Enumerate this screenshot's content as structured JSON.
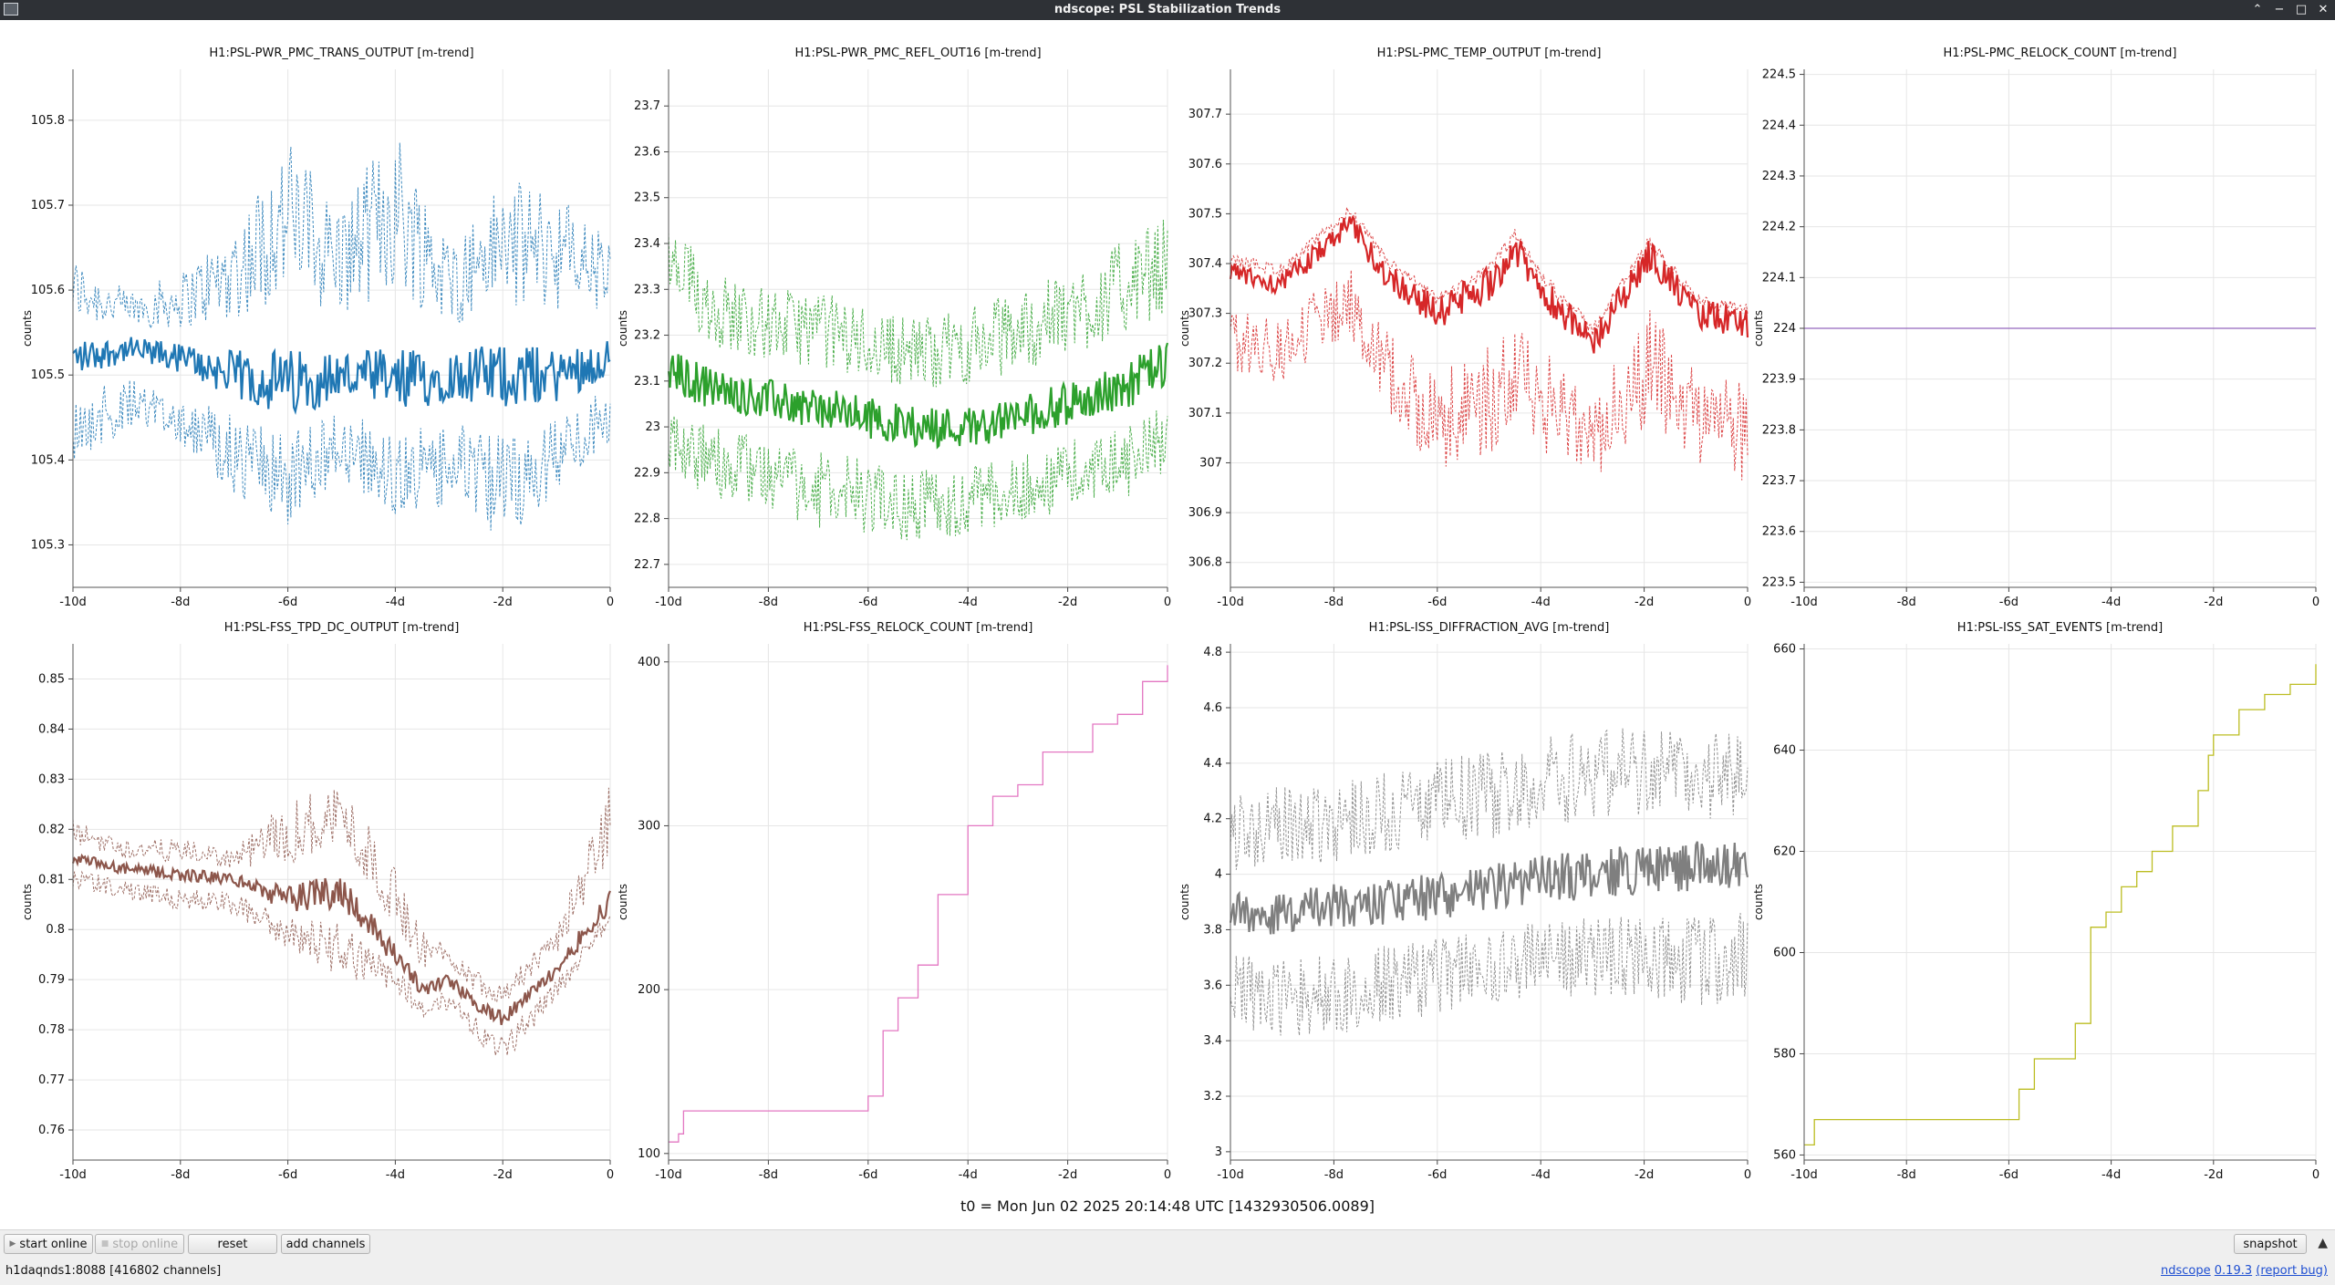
{
  "window": {
    "title": "ndscope: PSL Stabilization Trends",
    "controls": [
      "⌃",
      "−",
      "□",
      "✕"
    ]
  },
  "chart_data": [
    {
      "type": "line",
      "title": "H1:PSL-PWR_PMC_TRANS_OUTPUT [m-trend]",
      "ylabel": "counts",
      "color": "#1f77b4",
      "x_ticks": [
        "-10d",
        "-8d",
        "-6d",
        "-4d",
        "-2d",
        "0"
      ],
      "y_ticks": [
        "105.3",
        "105.4",
        "105.5",
        "105.6",
        "105.7",
        "105.8"
      ],
      "xlim": [
        -10,
        0
      ],
      "ylim": [
        105.25,
        105.86
      ],
      "grid": true,
      "series": {
        "x": [
          -10,
          -9,
          -8,
          -7,
          -6,
          -5,
          -4,
          -3,
          -2,
          -1,
          0
        ],
        "mean": [
          105.52,
          105.53,
          105.52,
          105.5,
          105.49,
          105.5,
          105.49,
          105.5,
          105.5,
          105.5,
          105.52
        ],
        "min": [
          105.4,
          105.43,
          105.42,
          105.36,
          105.32,
          105.38,
          105.33,
          105.34,
          105.3,
          105.36,
          105.42
        ],
        "max": [
          105.64,
          105.6,
          105.62,
          105.68,
          105.78,
          105.7,
          105.8,
          105.66,
          105.73,
          105.72,
          105.66
        ]
      }
    },
    {
      "type": "line",
      "title": "H1:PSL-PWR_PMC_REFL_OUT16 [m-trend]",
      "ylabel": "counts",
      "color": "#2ca02c",
      "x_ticks": [
        "-10d",
        "-8d",
        "-6d",
        "-4d",
        "-2d",
        "0"
      ],
      "y_ticks": [
        "22.7",
        "22.8",
        "22.9",
        "23",
        "23.1",
        "23.2",
        "23.3",
        "23.4",
        "23.5",
        "23.6",
        "23.7"
      ],
      "xlim": [
        -10,
        0
      ],
      "ylim": [
        22.65,
        23.78
      ],
      "grid": true,
      "series": {
        "x": [
          -10,
          -9,
          -8,
          -7,
          -6,
          -5,
          -4,
          -3,
          -2,
          -1,
          0
        ],
        "mean": [
          23.12,
          23.08,
          23.06,
          23.04,
          23.02,
          23.0,
          23.0,
          23.02,
          23.05,
          23.08,
          23.14
        ],
        "min": [
          22.88,
          22.84,
          22.82,
          22.78,
          22.76,
          22.75,
          22.76,
          22.78,
          22.82,
          22.84,
          22.88
        ],
        "max": [
          23.45,
          23.34,
          23.3,
          23.3,
          23.26,
          23.24,
          23.26,
          23.3,
          23.34,
          23.4,
          23.46
        ]
      }
    },
    {
      "type": "line",
      "title": "H1:PSL-PMC_TEMP_OUTPUT [m-trend]",
      "ylabel": "counts",
      "color": "#d62728",
      "x_ticks": [
        "-10d",
        "-8d",
        "-6d",
        "-4d",
        "-2d",
        "0"
      ],
      "y_ticks": [
        "306.8",
        "306.9",
        "307",
        "307.1",
        "307.2",
        "307.3",
        "307.4",
        "307.5",
        "307.6",
        "307.7"
      ],
      "xlim": [
        -10,
        0
      ],
      "ylim": [
        306.75,
        307.79
      ],
      "grid": true,
      "series": {
        "x": [
          -10,
          -9,
          -8,
          -7.7,
          -7,
          -6,
          -5,
          -4.5,
          -4,
          -3,
          -2,
          -1.9,
          -1,
          0
        ],
        "mean": [
          307.38,
          307.36,
          307.45,
          307.48,
          307.38,
          307.3,
          307.36,
          307.43,
          307.35,
          307.24,
          307.4,
          307.42,
          307.3,
          307.28
        ],
        "min": [
          307.18,
          307.16,
          307.24,
          307.26,
          307.1,
          306.98,
          307.0,
          307.1,
          307.02,
          306.96,
          307.06,
          307.1,
          306.98,
          306.95
        ],
        "max": [
          307.42,
          307.4,
          307.49,
          307.52,
          307.42,
          307.34,
          307.4,
          307.47,
          307.39,
          307.28,
          307.44,
          307.46,
          307.34,
          307.32
        ]
      }
    },
    {
      "type": "line",
      "title": "H1:PSL-PMC_RELOCK_COUNT [m-trend]",
      "ylabel": "counts",
      "color": "#9467bd",
      "x_ticks": [
        "-10d",
        "-8d",
        "-6d",
        "-4d",
        "-2d",
        "0"
      ],
      "y_ticks": [
        "223.5",
        "223.6",
        "223.7",
        "223.8",
        "223.9",
        "224",
        "224.1",
        "224.2",
        "224.3",
        "224.4",
        "224.5"
      ],
      "xlim": [
        -10,
        0
      ],
      "ylim": [
        223.49,
        224.51
      ],
      "grid": true,
      "series": {
        "x": [
          -10,
          0
        ],
        "mean": [
          224,
          224
        ],
        "min": [
          224,
          224
        ],
        "max": [
          224,
          224
        ]
      }
    },
    {
      "type": "line",
      "title": "H1:PSL-FSS_TPD_DC_OUTPUT [m-trend]",
      "ylabel": "counts",
      "color": "#8c564b",
      "x_ticks": [
        "-10d",
        "-8d",
        "-6d",
        "-4d",
        "-2d",
        "0"
      ],
      "y_ticks": [
        "0.76",
        "0.77",
        "0.78",
        "0.79",
        "0.8",
        "0.81",
        "0.82",
        "0.83",
        "0.84",
        "0.85"
      ],
      "xlim": [
        -10,
        0
      ],
      "ylim": [
        0.754,
        0.857
      ],
      "grid": true,
      "series": {
        "x": [
          -10,
          -9,
          -8,
          -7,
          -6,
          -5,
          -4,
          -3.5,
          -3,
          -2.5,
          -2,
          -1,
          0
        ],
        "mean": [
          0.814,
          0.812,
          0.811,
          0.81,
          0.806,
          0.808,
          0.795,
          0.788,
          0.79,
          0.785,
          0.782,
          0.792,
          0.806
        ],
        "min": [
          0.808,
          0.806,
          0.804,
          0.803,
          0.796,
          0.79,
          0.788,
          0.782,
          0.784,
          0.778,
          0.773,
          0.786,
          0.8
        ],
        "max": [
          0.822,
          0.818,
          0.818,
          0.816,
          0.826,
          0.83,
          0.812,
          0.8,
          0.797,
          0.792,
          0.79,
          0.8,
          0.83
        ]
      }
    },
    {
      "type": "line",
      "title": "H1:PSL-FSS_RELOCK_COUNT [m-trend]",
      "ylabel": "counts",
      "color": "#e377c2",
      "x_ticks": [
        "-10d",
        "-8d",
        "-6d",
        "-4d",
        "-2d",
        "0"
      ],
      "y_ticks": [
        "100",
        "200",
        "300",
        "400"
      ],
      "xlim": [
        -10,
        0
      ],
      "ylim": [
        96,
        411
      ],
      "grid": true,
      "series": {
        "x": [
          -10,
          -9.8,
          -9.7,
          -9,
          -8,
          -7,
          -6.1,
          -6,
          -5.7,
          -5.4,
          -5,
          -4.6,
          -4.2,
          -4,
          -3.5,
          -3,
          -2.5,
          -2,
          -1.5,
          -1,
          -0.5,
          0
        ],
        "mean": [
          107,
          112,
          126,
          126,
          126,
          126,
          126,
          135,
          175,
          195,
          215,
          258,
          258,
          300,
          318,
          325,
          345,
          345,
          362,
          368,
          388,
          398
        ]
      }
    },
    {
      "type": "line",
      "title": "H1:PSL-ISS_DIFFRACTION_AVG [m-trend]",
      "ylabel": "counts",
      "color": "#7f7f7f",
      "x_ticks": [
        "-10d",
        "-8d",
        "-6d",
        "-4d",
        "-2d",
        "0"
      ],
      "y_ticks": [
        "3",
        "3.2",
        "3.4",
        "3.6",
        "3.8",
        "4",
        "4.2",
        "4.4",
        "4.6",
        "4.8"
      ],
      "xlim": [
        -10,
        0
      ],
      "ylim": [
        2.97,
        4.83
      ],
      "grid": true,
      "series": {
        "x": [
          -10,
          -9,
          -8,
          -7,
          -6,
          -5,
          -4,
          -3,
          -2,
          -1,
          0
        ],
        "mean": [
          3.86,
          3.86,
          3.88,
          3.9,
          3.92,
          3.95,
          3.98,
          4.0,
          4.02,
          4.03,
          4.03
        ],
        "min": [
          3.45,
          3.4,
          3.42,
          3.45,
          3.5,
          3.52,
          3.55,
          3.56,
          3.55,
          3.52,
          3.55
        ],
        "max": [
          4.3,
          4.32,
          4.35,
          4.38,
          4.42,
          4.45,
          4.5,
          4.55,
          4.55,
          4.52,
          4.5
        ]
      }
    },
    {
      "type": "line",
      "title": "H1:PSL-ISS_SAT_EVENTS [m-trend]",
      "ylabel": "counts",
      "color": "#bcbd22",
      "x_ticks": [
        "-10d",
        "-8d",
        "-6d",
        "-4d",
        "-2d",
        "0"
      ],
      "y_ticks": [
        "560",
        "580",
        "600",
        "620",
        "640",
        "660"
      ],
      "xlim": [
        -10,
        0
      ],
      "ylim": [
        559,
        661
      ],
      "grid": true,
      "series": {
        "x": [
          -10,
          -9.8,
          -6.1,
          -5.8,
          -5.5,
          -5.0,
          -4.7,
          -4.4,
          -4.1,
          -3.8,
          -3.5,
          -3.2,
          -2.8,
          -2.3,
          -2.1,
          -2.0,
          -1.5,
          -1.0,
          -0.5,
          0
        ],
        "mean": [
          562,
          567,
          567,
          573,
          579,
          579,
          586,
          605,
          608,
          613,
          616,
          620,
          625,
          632,
          639,
          643,
          648,
          651,
          653,
          657
        ]
      }
    }
  ],
  "t0_label": "t0 = Mon Jun 02 2025 20:14:48 UTC [1432930506.0089]",
  "toolbar": {
    "start_online": "start online",
    "stop_online": "stop online",
    "reset": "reset",
    "add_channels": "add channels",
    "snapshot": "snapshot",
    "expand": "▲"
  },
  "status": {
    "server": "h1daqnds1:8088",
    "channels": "[416802 channels]",
    "app_name": "ndscope",
    "version": "0.19.3",
    "report_bug": "(report bug)"
  }
}
